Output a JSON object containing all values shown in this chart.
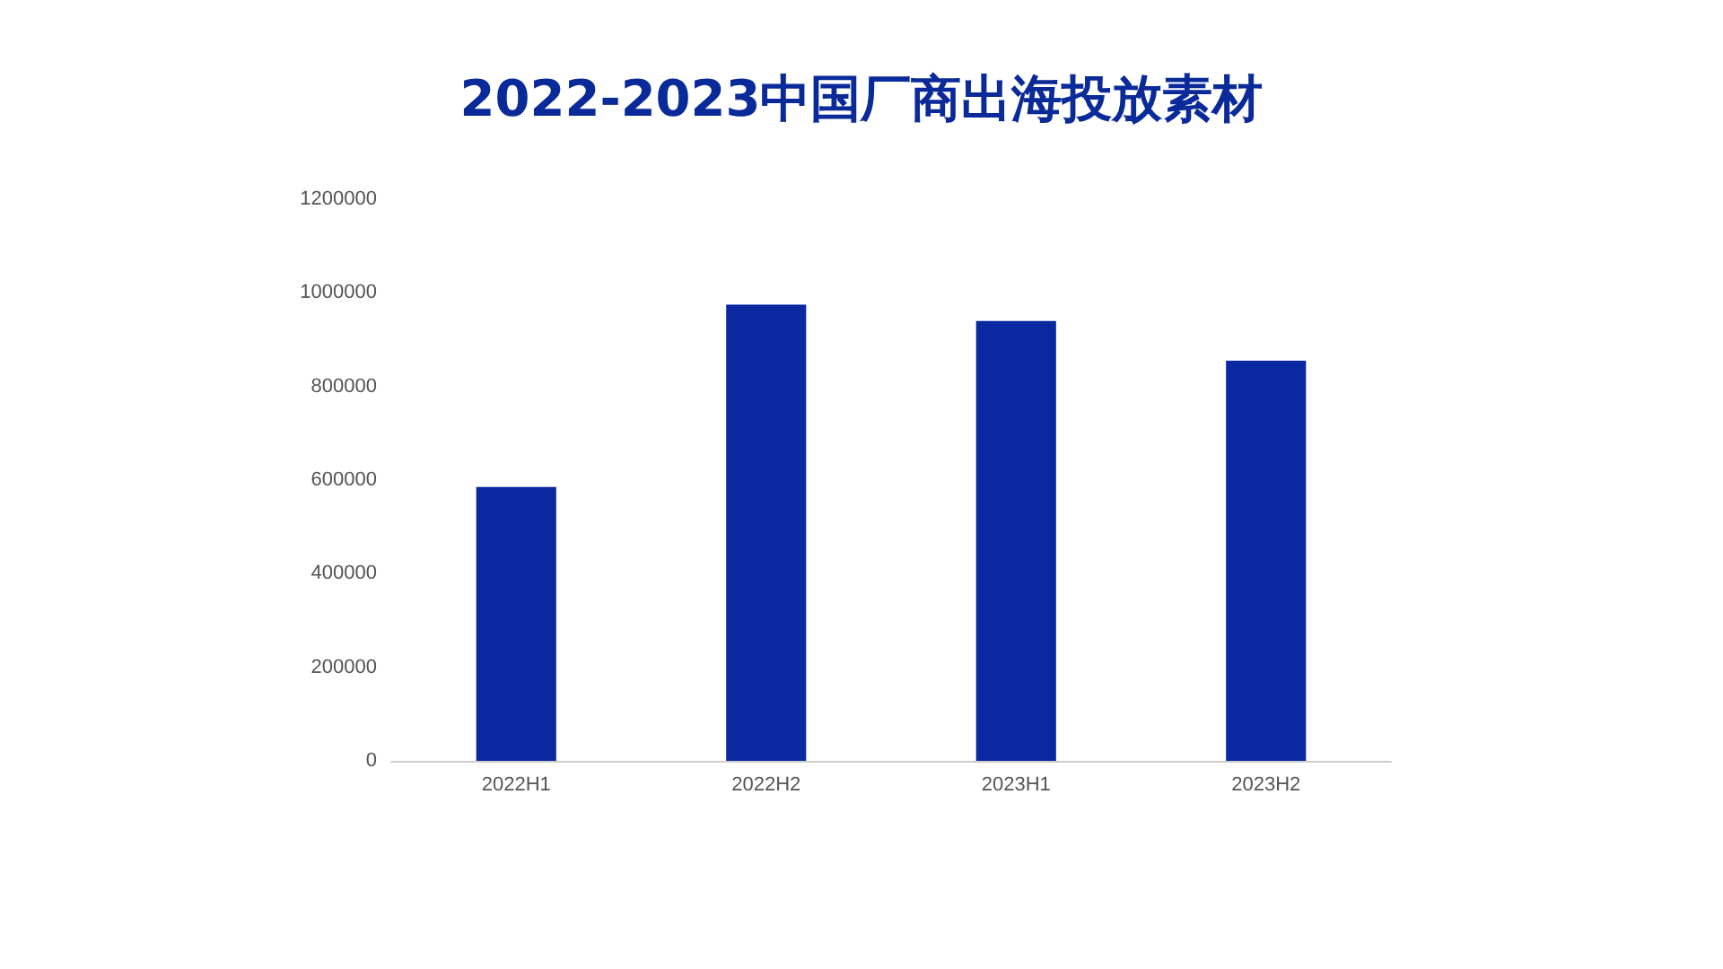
{
  "chart_data": {
    "type": "bar",
    "title": "2022-2023中国厂商出海投放素材",
    "categories": [
      "2022H1",
      "2022H2",
      "2023H1",
      "2023H2"
    ],
    "values": [
      585000,
      975000,
      940000,
      855000
    ],
    "color": "#0a28a0",
    "ylim": [
      0,
      1200000
    ],
    "yticks": [
      0,
      200000,
      400000,
      600000,
      800000,
      1000000,
      1200000
    ],
    "grid": false
  }
}
